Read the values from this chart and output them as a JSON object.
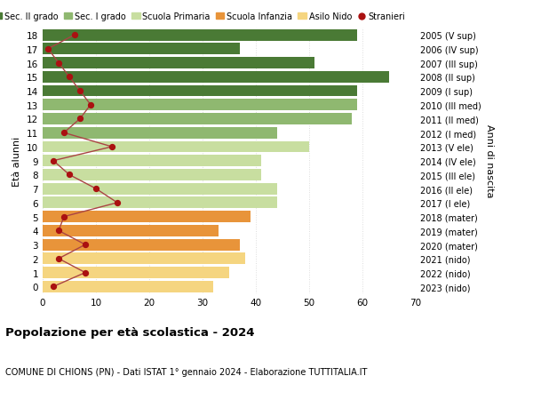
{
  "ages": [
    0,
    1,
    2,
    3,
    4,
    5,
    6,
    7,
    8,
    9,
    10,
    11,
    12,
    13,
    14,
    15,
    16,
    17,
    18
  ],
  "bar_values": [
    32,
    35,
    38,
    37,
    33,
    39,
    44,
    44,
    41,
    41,
    50,
    44,
    58,
    59,
    59,
    65,
    51,
    37,
    59
  ],
  "stranieri": [
    2,
    8,
    3,
    8,
    3,
    4,
    14,
    10,
    5,
    2,
    13,
    4,
    7,
    9,
    7,
    5,
    3,
    1,
    6
  ],
  "bar_colors": {
    "0": "#f5d580",
    "1": "#f5d580",
    "2": "#f5d580",
    "3": "#e8943a",
    "4": "#e8943a",
    "5": "#e8943a",
    "6": "#c8dea0",
    "7": "#c8dea0",
    "8": "#c8dea0",
    "9": "#c8dea0",
    "10": "#c8dea0",
    "11": "#8fb870",
    "12": "#8fb870",
    "13": "#8fb870",
    "14": "#4a7a35",
    "15": "#4a7a35",
    "16": "#4a7a35",
    "17": "#4a7a35",
    "18": "#4a7a35"
  },
  "right_labels": [
    "2023 (nido)",
    "2022 (nido)",
    "2021 (nido)",
    "2020 (mater)",
    "2019 (mater)",
    "2018 (mater)",
    "2017 (I ele)",
    "2016 (II ele)",
    "2015 (III ele)",
    "2014 (IV ele)",
    "2013 (V ele)",
    "2012 (I med)",
    "2011 (II med)",
    "2010 (III med)",
    "2009 (I sup)",
    "2008 (II sup)",
    "2007 (III sup)",
    "2006 (IV sup)",
    "2005 (V sup)"
  ],
  "legend_labels": [
    "Sec. II grado",
    "Sec. I grado",
    "Scuola Primaria",
    "Scuola Infanzia",
    "Asilo Nido",
    "Stranieri"
  ],
  "legend_colors": [
    "#4a7a35",
    "#8fb870",
    "#c8dea0",
    "#e8943a",
    "#f5d580",
    "#cc2222"
  ],
  "ylabel_left": "Età alunni",
  "right_axis_label": "Anni di nascita",
  "title_bold": "Popolazione per età scolastica - 2024",
  "subtitle": "COMUNE DI CHIONS (PN) - Dati ISTAT 1° gennaio 2024 - Elaborazione TUTTITALIA.IT",
  "xlim": [
    0,
    70
  ],
  "stranieri_color": "#aa1111",
  "stranieri_line_color": "#aa4444",
  "background_color": "#ffffff",
  "grid_color": "#dddddd"
}
